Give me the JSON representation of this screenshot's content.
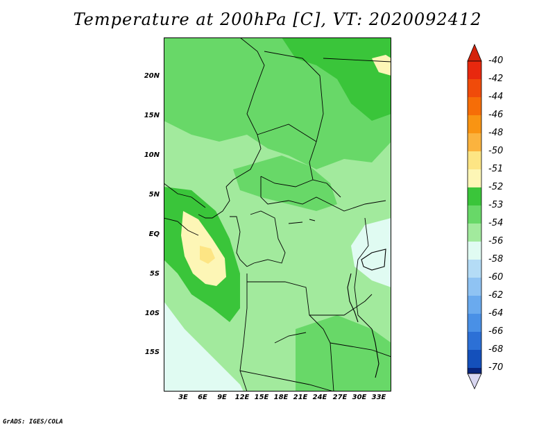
{
  "title": "Temperature at 200hPa [C], VT: 2020092412",
  "footer": "GrADS: IGES/COLA",
  "lat_labels": [
    "20N",
    "15N",
    "10N",
    "5N",
    "EQ",
    "5S",
    "10S",
    "15S"
  ],
  "lon_labels": [
    "3E",
    "6E",
    "9E",
    "12E",
    "15E",
    "18E",
    "21E",
    "24E",
    "27E",
    "30E",
    "33E"
  ],
  "legend": {
    "labels": [
      "-40",
      "-42",
      "-44",
      "-46",
      "-48",
      "-50",
      "-51",
      "-52",
      "-53",
      "-54",
      "-56",
      "-58",
      "-60",
      "-62",
      "-64",
      "-66",
      "-68",
      "-70"
    ],
    "colors": [
      "#e8280e",
      "#f04b0a",
      "#f66d07",
      "#f99412",
      "#fbb33e",
      "#fde584",
      "#fdf6b6",
      "#3ac53a",
      "#68d868",
      "#a2ea9d",
      "#e0fbf2",
      "#b4dcf6",
      "#8fc3f3",
      "#6aaaee",
      "#4990e6",
      "#2c70d6",
      "#1450bb",
      "#08247c"
    ],
    "over_color": "#d4230b",
    "under_color": "#d8d6f0"
  },
  "field_colors": {
    "base": "#a2ea9d",
    "darker": "#68d868",
    "darkest": "#3ac53a",
    "warm": "#fdf6b6",
    "warmer": "#fde584",
    "cool": "#e0fbf2"
  }
}
